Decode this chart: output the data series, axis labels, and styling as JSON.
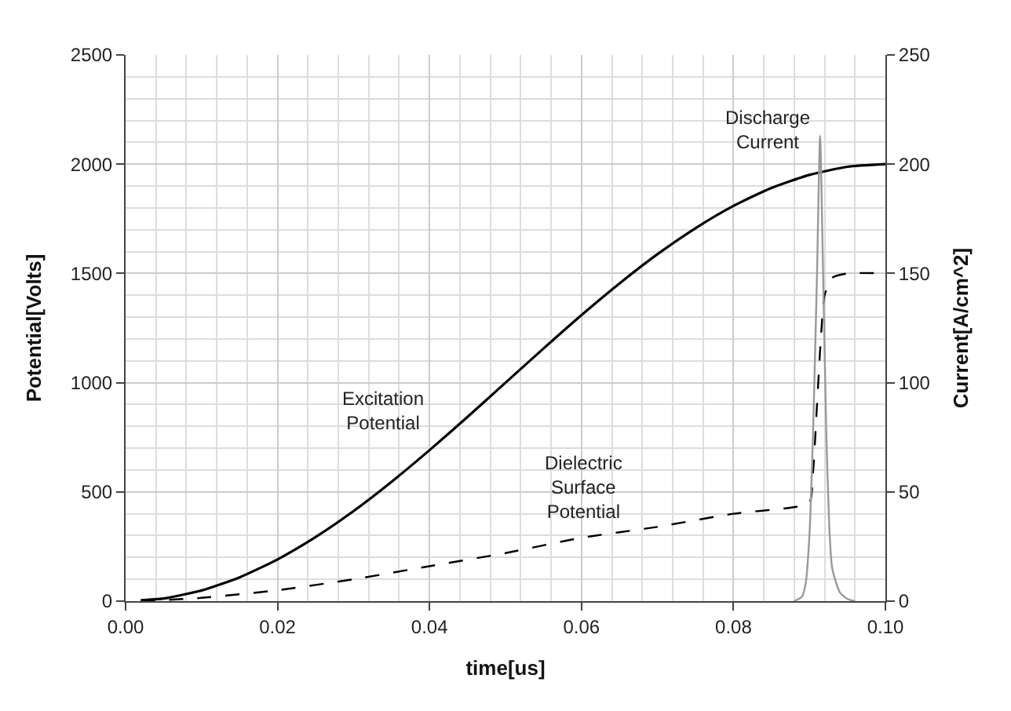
{
  "chart_data": {
    "type": "line",
    "xlabel": "time[us]",
    "ylabel": "Potential[Volts]",
    "y2label": "Current[A/cm^2]",
    "xlim": [
      0,
      0.1
    ],
    "xticks": [
      {
        "value": 0,
        "label": "0.00"
      },
      {
        "value": 0.02,
        "label": "0.02"
      },
      {
        "value": 0.04,
        "label": "0.04"
      },
      {
        "value": 0.06,
        "label": "0.06"
      },
      {
        "value": 0.08,
        "label": "0.08"
      },
      {
        "value": 0.1,
        "label": "0.10"
      }
    ],
    "ylim": [
      0,
      2500
    ],
    "yticks": [
      0,
      500,
      1000,
      1500,
      2000,
      2500
    ],
    "y2lim": [
      0,
      250
    ],
    "y2ticks": [
      0,
      50,
      100,
      150,
      200,
      250
    ],
    "grid": true,
    "legend": false,
    "marker": "none",
    "series": [
      {
        "name": "Excitation Potential",
        "color": "#000000",
        "line_style": "solid",
        "x": [
          0.002,
          0.005,
          0.01,
          0.015,
          0.02,
          0.025,
          0.03,
          0.035,
          0.04,
          0.045,
          0.05,
          0.055,
          0.06,
          0.065,
          0.07,
          0.075,
          0.08,
          0.085,
          0.09,
          0.095,
          0.1
        ],
        "values": [
          4,
          12,
          49,
          109,
          191,
          293,
          412,
          546,
          691,
          843,
          1000,
          1156,
          1309,
          1454,
          1588,
          1707,
          1809,
          1891,
          1951,
          1988,
          2000
        ]
      },
      {
        "name": "Dielectric Surface Potential",
        "color": "#000000",
        "line_style": "dashed",
        "x": [
          0.002,
          0.01,
          0.02,
          0.03,
          0.04,
          0.05,
          0.06,
          0.07,
          0.08,
          0.088,
          0.09,
          0.0905,
          0.091,
          0.0915,
          0.092,
          0.093,
          0.095,
          0.1
        ],
        "values": [
          0,
          15,
          50,
          100,
          160,
          220,
          290,
          340,
          400,
          430,
          450,
          600,
          900,
          1200,
          1400,
          1480,
          1500,
          1500
        ]
      },
      {
        "name": "Discharge Current",
        "color": "#999999",
        "line_style": "solid",
        "axis": "y2",
        "x": [
          0.088,
          0.089,
          0.0895,
          0.09,
          0.0905,
          0.091,
          0.0914,
          0.0918,
          0.0922,
          0.0926,
          0.093,
          0.094,
          0.095,
          0.096
        ],
        "values": [
          0,
          2,
          8,
          30,
          80,
          150,
          213,
          150,
          80,
          35,
          15,
          4,
          1,
          0
        ]
      }
    ]
  }
}
